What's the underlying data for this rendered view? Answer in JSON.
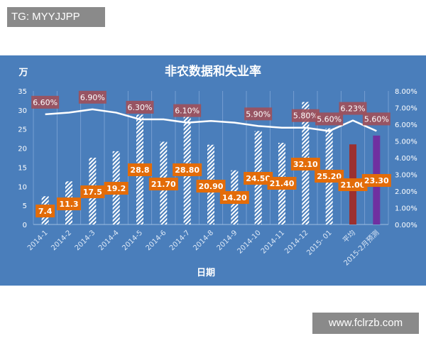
{
  "watermark_top": "TG: MYYJJPP",
  "watermark_bottom": "www.fclrzb.com",
  "chart_data": {
    "type": "bar+line",
    "title": "非农数据和失业率",
    "ylabel": "万",
    "xlabel": "日期",
    "categories": [
      "2014-1",
      "2014-2",
      "2014-3",
      "2014-4",
      "2014-5",
      "2014-6",
      "2014-7",
      "2014-8",
      "2014-9",
      "2014-10",
      "2014-11",
      "2014-12",
      "2015- 01",
      "平均",
      "2015-2月预测"
    ],
    "bar_series": {
      "values": [
        7.4,
        11.3,
        17.5,
        19.2,
        28.8,
        21.7,
        28.8,
        20.9,
        14.2,
        24.5,
        21.4,
        32.1,
        25.2,
        21.0,
        23.3
      ],
      "data_labels": [
        "7.4",
        "11.3",
        "17.5",
        "19.2",
        "28.8",
        "21.70",
        "28.80",
        "20.90",
        "14.20",
        "24.50",
        "21.40",
        "32.10",
        "25.20",
        "21.00",
        "23.30"
      ],
      "bar_colors": [
        "hatched",
        "hatched",
        "hatched",
        "hatched",
        "hatched",
        "hatched",
        "hatched",
        "hatched",
        "hatched",
        "hatched",
        "hatched",
        "hatched",
        "hatched",
        "#9b3030",
        "#7030a0"
      ]
    },
    "line_series": {
      "values": [
        6.6,
        6.7,
        6.9,
        6.7,
        6.3,
        6.3,
        6.1,
        6.2,
        6.1,
        5.9,
        5.8,
        5.8,
        5.6,
        6.23,
        5.6
      ],
      "data_labels": [
        "6.60%",
        "",
        "6.90%",
        "",
        "6.30%",
        "",
        "6.10%",
        "",
        "",
        "5.90%",
        "",
        "5.80%",
        "5.60%",
        "6.23%",
        "5.60%"
      ]
    },
    "left_axis": {
      "min": 0,
      "max": 35,
      "ticks": [
        "0",
        "5",
        "10",
        "15",
        "20",
        "25",
        "30",
        "35"
      ]
    },
    "right_axis": {
      "min": 0,
      "max": 8,
      "ticks": [
        "0.00%",
        "1.00%",
        "2.00%",
        "3.00%",
        "4.00%",
        "5.00%",
        "6.00%",
        "7.00%",
        "8.00%"
      ]
    },
    "grid": "vertical",
    "colors": {
      "background": "#4a7ebb",
      "label_bar": "#e36c09",
      "label_line": "#a0505a",
      "line": "#ffffff"
    }
  }
}
